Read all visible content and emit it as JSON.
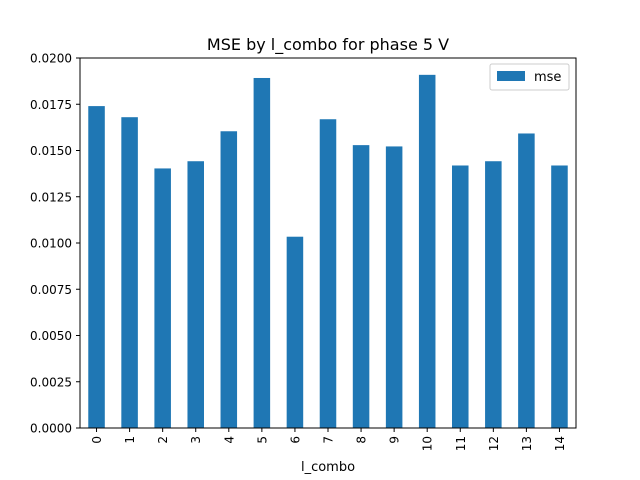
{
  "chart_data": {
    "type": "bar",
    "title": "MSE by l_combo for phase 5 V",
    "xlabel": "l_combo",
    "ylabel": "",
    "categories": [
      "0",
      "1",
      "2",
      "3",
      "4",
      "5",
      "6",
      "7",
      "8",
      "9",
      "10",
      "11",
      "12",
      "13",
      "14"
    ],
    "series": [
      {
        "name": "mse",
        "values": [
          0.0174,
          0.0168,
          0.01403,
          0.01442,
          0.01604,
          0.01892,
          0.01034,
          0.01669,
          0.01529,
          0.01522,
          0.01909,
          0.01419,
          0.01442,
          0.01592,
          0.01419
        ],
        "color": "#1f77b4"
      }
    ],
    "ylim": [
      0,
      0.02
    ],
    "yticks": [
      "0.0000",
      "0.0025",
      "0.0050",
      "0.0075",
      "0.0100",
      "0.0125",
      "0.0150",
      "0.0175",
      "0.0200"
    ],
    "grid": false,
    "legend_position": "top-right"
  }
}
